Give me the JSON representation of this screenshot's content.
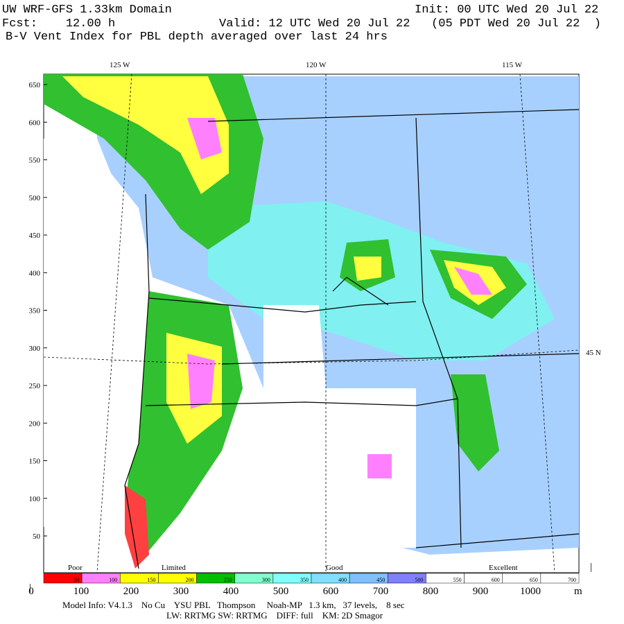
{
  "header": {
    "title": "UW WRF-GFS 1.33km Domain",
    "init": "Init: 00 UTC Wed 20 Jul 22",
    "forecast": "Fcst:    12.00 h",
    "valid": "Valid: 12 UTC Wed 20 Jul 22   (05 PDT Wed 20 Jul 22  )",
    "field": "B-V Vent Index for PBL depth averaged over last 24 hrs"
  },
  "map": {
    "longitude_labels": [
      "125 W",
      "120 W",
      "115 W"
    ],
    "latitude_label": "45 N",
    "left_ticks": [
      650,
      600,
      550,
      500,
      450,
      400,
      350,
      300,
      250,
      200,
      150,
      100,
      50
    ]
  },
  "legend": {
    "categories": [
      "Poor",
      "Limited",
      "Good",
      "Excellent"
    ],
    "levels": [
      50,
      100,
      150,
      200,
      250,
      300,
      350,
      400,
      450,
      500,
      550,
      600,
      650,
      700
    ],
    "colors": [
      "#ff0000",
      "#ff80ff",
      "#ffff00",
      "#ffff00",
      "#00c000",
      "#80ffd0",
      "#80ffff",
      "#80e0ff",
      "#80c0ff",
      "#8080ff",
      "#ffffff",
      "#ffffff",
      "#ffffff",
      "#ffffff"
    ],
    "bottom_ticks": [
      0,
      100,
      200,
      300,
      400,
      500,
      600,
      700,
      800,
      900,
      1000
    ],
    "bottom_unit": "m",
    "marker": "|"
  },
  "footer": {
    "model_info": "Model Info: V4.1.3    No Cu    YSU PBL   Thompson     Noah-MP   1.3 km,   37 levels,    8 sec",
    "physics": "LW: RRTMG SW: RRTMG    DIFF: full    KM: 2D Smagor"
  }
}
